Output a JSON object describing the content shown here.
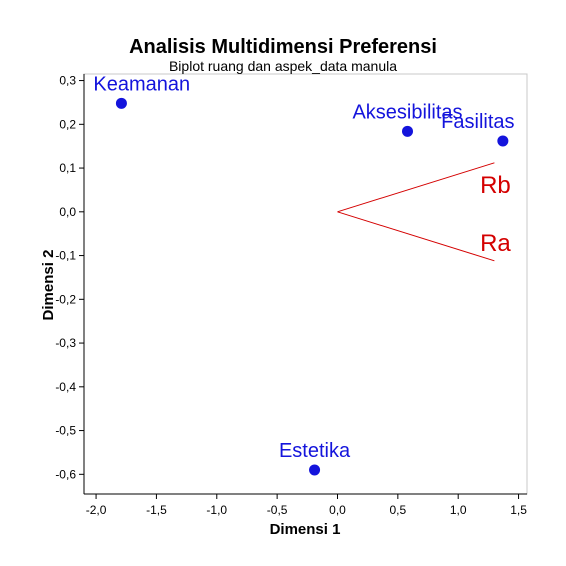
{
  "chart_data": {
    "type": "scatter",
    "title": "Analisis Multidimensi Preferensi",
    "subtitle": "Biplot ruang dan aspek_data manula",
    "xlabel": "Dimensi 1",
    "ylabel": "Dimensi 2",
    "xlim": [
      -2.1,
      1.57
    ],
    "ylim": [
      -0.645,
      0.315
    ],
    "x_ticks": [
      {
        "value": -2.0,
        "label": "-2,0"
      },
      {
        "value": -1.5,
        "label": "-1,5"
      },
      {
        "value": -1.0,
        "label": "-1,0"
      },
      {
        "value": -0.5,
        "label": "-0,5"
      },
      {
        "value": 0.0,
        "label": "0,0"
      },
      {
        "value": 0.5,
        "label": "0,5"
      },
      {
        "value": 1.0,
        "label": "1,0"
      },
      {
        "value": 1.5,
        "label": "1,5"
      }
    ],
    "y_ticks": [
      {
        "value": 0.3,
        "label": "0,3"
      },
      {
        "value": 0.2,
        "label": "0,2"
      },
      {
        "value": 0.1,
        "label": "0,1"
      },
      {
        "value": 0.0,
        "label": "0,0"
      },
      {
        "value": -0.1,
        "label": "-0,1"
      },
      {
        "value": -0.2,
        "label": "-0,2"
      },
      {
        "value": -0.3,
        "label": "-0,3"
      },
      {
        "value": -0.4,
        "label": "-0,4"
      },
      {
        "value": -0.5,
        "label": "-0,5"
      },
      {
        "value": -0.6,
        "label": "-0,6"
      }
    ],
    "grid": false,
    "points": [
      {
        "label": "Keamanan",
        "x": -1.79,
        "y": 0.248
      },
      {
        "label": "Aksesibilitas",
        "x": 0.58,
        "y": 0.184
      },
      {
        "label": "Fasilitas",
        "x": 1.37,
        "y": 0.162
      },
      {
        "label": "Estetika",
        "x": -0.19,
        "y": -0.59
      }
    ],
    "vectors": [
      {
        "label": "Rb",
        "x": 1.3,
        "y": 0.112
      },
      {
        "label": "Ra",
        "x": 1.3,
        "y": -0.112
      }
    ],
    "colors": {
      "points": "#1414dc",
      "vectors": "#d40000",
      "frame": "#c8c8c8",
      "plot_bg": "#ffffff"
    }
  }
}
